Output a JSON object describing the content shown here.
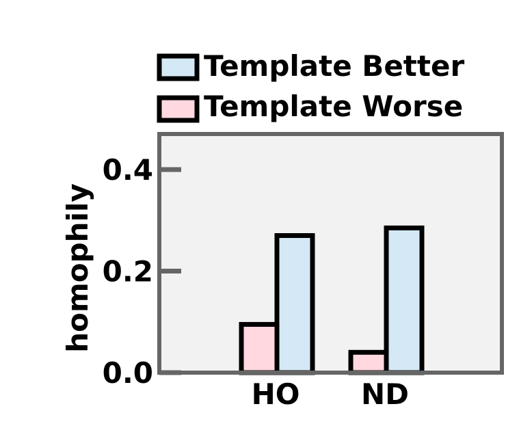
{
  "chart_data": {
    "type": "bar",
    "categories": [
      "HO",
      "ND"
    ],
    "series": [
      {
        "name": "Template Worse",
        "values": [
          0.095,
          0.04
        ],
        "color": "#ffd9df"
      },
      {
        "name": "Template Better",
        "values": [
          0.27,
          0.285
        ],
        "color": "#d4e8f5"
      }
    ],
    "ylabel": "homophily",
    "xlabel": "",
    "ylim": [
      0,
      0.47
    ],
    "yticks": [
      0.0,
      0.2,
      0.4
    ],
    "ytick_labels": [
      "0.0",
      "0.2",
      "0.4"
    ],
    "grid": false,
    "legend": {
      "placement": "above-plot",
      "entries": [
        "Template Better",
        "Template Worse"
      ]
    },
    "colors": {
      "plot_background": "#f2f2f2",
      "axis": "#666666",
      "bar_edge": "#000000"
    }
  }
}
